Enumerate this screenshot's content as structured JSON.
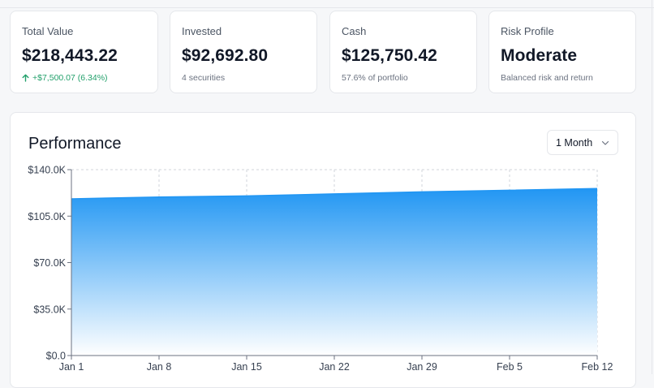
{
  "cards": [
    {
      "label": "Total Value",
      "value": "$218,443.22",
      "sub": "+$7,500.07 (6.34%)",
      "sub_trend": "up"
    },
    {
      "label": "Invested",
      "value": "$92,692.80",
      "sub": "4 securities"
    },
    {
      "label": "Cash",
      "value": "$125,750.42",
      "sub": "57.6% of portfolio"
    },
    {
      "label": "Risk Profile",
      "value": "Moderate",
      "sub": "Balanced risk and return"
    }
  ],
  "performance": {
    "title": "Performance",
    "range": "1 Month"
  },
  "colors": {
    "area_top": "#2196f3",
    "area_bottom": "#ffffff",
    "positive": "#22a06b",
    "grid": "#d1d5db"
  },
  "icons": {
    "trend": "arrow-up-icon",
    "dropdown": "chevron-down-icon"
  },
  "chart_data": {
    "type": "area",
    "title": "",
    "xlabel": "",
    "ylabel": "",
    "x": [
      "Jan 1",
      "Jan 8",
      "Jan 15",
      "Jan 22",
      "Jan 29",
      "Feb 5",
      "Feb 12"
    ],
    "series": [
      {
        "values": [
          118000,
          119400,
          120200,
          121700,
          123300,
          124500,
          125750
        ]
      }
    ],
    "ylim": [
      0,
      140000
    ],
    "yticks": [
      "$0.0",
      "$35.0K",
      "$70.0K",
      "$105.0K",
      "$140.0K"
    ],
    "ytick_values": [
      0,
      35000,
      70000,
      105000,
      140000
    ],
    "grid": true,
    "legend": "none"
  }
}
